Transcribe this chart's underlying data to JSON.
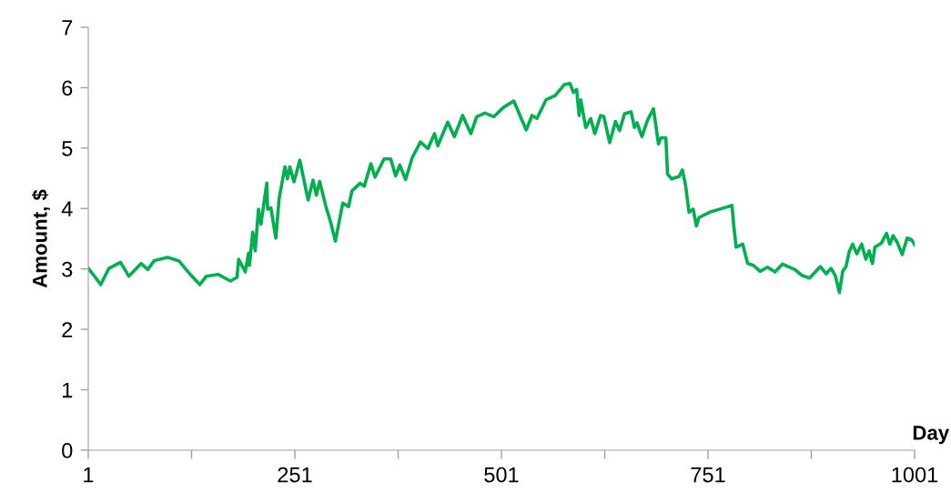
{
  "chart_data": {
    "type": "line",
    "xlabel": "Day",
    "ylabel": "Amount, $",
    "x": [
      1,
      8,
      16,
      26,
      40,
      50,
      65,
      73,
      81,
      97,
      111,
      125,
      136,
      144,
      158,
      173,
      181,
      183,
      191,
      195,
      196,
      200,
      203,
      207,
      210,
      217,
      218,
      222,
      228,
      232,
      239,
      242,
      245,
      250,
      257,
      267,
      273,
      277,
      281,
      289,
      294,
      300,
      309,
      316,
      320,
      330,
      335,
      343,
      348,
      359,
      367,
      373,
      378,
      385,
      393,
      403,
      412,
      420,
      424,
      436,
      444,
      454,
      464,
      471,
      481,
      492,
      503,
      516,
      524,
      531,
      538,
      544,
      555,
      566,
      577,
      584,
      588,
      592,
      595,
      597,
      603,
      609,
      614,
      621,
      625,
      632,
      639,
      644,
      650,
      658,
      662,
      665,
      671,
      678,
      685,
      691,
      694,
      700,
      702,
      707,
      716,
      720,
      724,
      728,
      733,
      737,
      740,
      753,
      770,
      780,
      782,
      785,
      793,
      799,
      806,
      814,
      823,
      832,
      841,
      856,
      865,
      874,
      887,
      894,
      900,
      905,
      910,
      914,
      918,
      922,
      926,
      931,
      937,
      942,
      946,
      950,
      953,
      961,
      967,
      971,
      975,
      980,
      986,
      992,
      997,
      1001
    ],
    "series": [
      {
        "color": "#00b050",
        "values": [
          3.01,
          2.89,
          2.74,
          3.01,
          3.11,
          2.88,
          3.09,
          2.99,
          3.14,
          3.19,
          3.13,
          2.9,
          2.74,
          2.88,
          2.91,
          2.8,
          2.86,
          3.16,
          2.95,
          3.26,
          3.06,
          3.61,
          3.3,
          3.99,
          3.74,
          4.42,
          3.99,
          4.01,
          3.51,
          4.17,
          4.69,
          4.49,
          4.69,
          4.44,
          4.8,
          4.14,
          4.47,
          4.22,
          4.45,
          4.01,
          3.79,
          3.46,
          4.09,
          4.03,
          4.29,
          4.42,
          4.37,
          4.74,
          4.52,
          4.82,
          4.82,
          4.54,
          4.72,
          4.48,
          4.84,
          5.1,
          4.99,
          5.24,
          5.04,
          5.43,
          5.19,
          5.54,
          5.24,
          5.52,
          5.58,
          5.52,
          5.67,
          5.78,
          5.52,
          5.3,
          5.54,
          5.49,
          5.8,
          5.87,
          6.05,
          6.07,
          5.92,
          5.97,
          5.54,
          5.8,
          5.34,
          5.49,
          5.24,
          5.54,
          5.52,
          5.09,
          5.44,
          5.29,
          5.57,
          5.6,
          5.34,
          5.42,
          5.19,
          5.47,
          5.65,
          5.07,
          5.17,
          5.17,
          4.57,
          4.49,
          4.53,
          4.64,
          4.37,
          3.94,
          3.99,
          3.71,
          3.85,
          3.94,
          4.01,
          4.05,
          3.74,
          3.36,
          3.41,
          3.09,
          3.06,
          2.96,
          3.03,
          2.95,
          3.08,
          2.99,
          2.89,
          2.85,
          3.04,
          2.92,
          3.01,
          2.89,
          2.61,
          2.96,
          3.04,
          3.29,
          3.41,
          3.25,
          3.41,
          3.16,
          3.3,
          3.09,
          3.36,
          3.43,
          3.59,
          3.41,
          3.55,
          3.44,
          3.24,
          3.51,
          3.49,
          3.4
        ]
      }
    ],
    "xlim": [
      1,
      1001
    ],
    "xticks": [
      1,
      {
        "value": 126,
        "label": null
      },
      251,
      {
        "value": 376,
        "label": null
      },
      501,
      {
        "value": 626,
        "label": null
      },
      751,
      {
        "value": 876,
        "label": null
      },
      1001
    ],
    "ylim": [
      0,
      7
    ],
    "yticks": [
      0,
      1,
      2,
      3,
      4,
      5,
      6,
      7
    ],
    "grid": false,
    "legend": false,
    "marker": "none",
    "line_style": "solid"
  }
}
